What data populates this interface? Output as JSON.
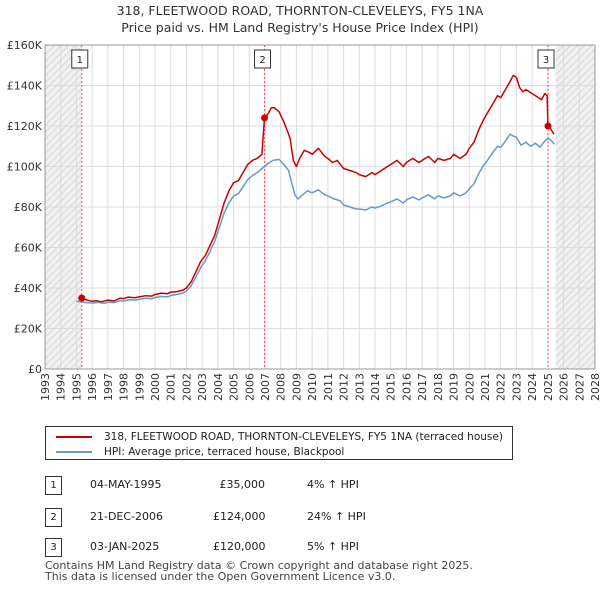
{
  "chart_data": {
    "type": "line",
    "title": "318, FLEETWOOD ROAD, THORNTON-CLEVELEYS, FY5 1NA",
    "subtitle": "Price paid vs. HM Land Registry's House Price Index (HPI)",
    "xlabel": "",
    "ylabel": "",
    "xlim": [
      1993,
      2028
    ],
    "ylim": [
      0,
      160000
    ],
    "x_ticks": [
      1993,
      1994,
      1995,
      1996,
      1997,
      1998,
      1999,
      2000,
      2001,
      2002,
      2003,
      2004,
      2005,
      2006,
      2007,
      2008,
      2009,
      2010,
      2011,
      2012,
      2013,
      2014,
      2015,
      2016,
      2017,
      2018,
      2019,
      2020,
      2021,
      2022,
      2023,
      2024,
      2025,
      2026,
      2027,
      2028
    ],
    "y_ticks": [
      {
        "value": 0,
        "label": "£0"
      },
      {
        "value": 20000,
        "label": "£20K"
      },
      {
        "value": 40000,
        "label": "£40K"
      },
      {
        "value": 60000,
        "label": "£60K"
      },
      {
        "value": 80000,
        "label": "£80K"
      },
      {
        "value": 100000,
        "label": "£100K"
      },
      {
        "value": 120000,
        "label": "£120K"
      },
      {
        "value": 140000,
        "label": "£140K"
      },
      {
        "value": 160000,
        "label": "£160K"
      }
    ],
    "grid": true,
    "shaded_regions": [
      {
        "name": "before-data",
        "x": [
          1993,
          1995.34
        ]
      },
      {
        "name": "after-data",
        "x": [
          2025.5,
          2028
        ]
      }
    ],
    "series": [
      {
        "name": "318, FLEETWOOD ROAD, THORNTON-CLEVELEYS, FY5 1NA (terraced house)",
        "color": "#cc0000",
        "points": [
          [
            1995.34,
            35000
          ],
          [
            1995.5,
            34500
          ],
          [
            1995.8,
            33800
          ],
          [
            1996.0,
            33500
          ],
          [
            1996.3,
            33700
          ],
          [
            1996.6,
            33200
          ],
          [
            1997.0,
            34000
          ],
          [
            1997.4,
            33600
          ],
          [
            1997.8,
            35000
          ],
          [
            1998.0,
            34700
          ],
          [
            1998.3,
            35500
          ],
          [
            1998.7,
            35200
          ],
          [
            1999.0,
            35600
          ],
          [
            1999.4,
            36200
          ],
          [
            1999.8,
            36000
          ],
          [
            2000.0,
            36800
          ],
          [
            2000.4,
            37500
          ],
          [
            2000.8,
            37200
          ],
          [
            2001.0,
            38000
          ],
          [
            2001.4,
            38200
          ],
          [
            2001.8,
            39000
          ],
          [
            2002.0,
            40000
          ],
          [
            2002.3,
            43000
          ],
          [
            2002.6,
            48000
          ],
          [
            2002.9,
            53000
          ],
          [
            2003.2,
            56000
          ],
          [
            2003.5,
            61000
          ],
          [
            2003.8,
            66000
          ],
          [
            2004.1,
            74000
          ],
          [
            2004.4,
            82000
          ],
          [
            2004.7,
            88000
          ],
          [
            2005.0,
            92000
          ],
          [
            2005.3,
            93000
          ],
          [
            2005.6,
            97000
          ],
          [
            2005.9,
            101000
          ],
          [
            2006.2,
            103000
          ],
          [
            2006.5,
            104000
          ],
          [
            2006.8,
            106000
          ],
          [
            2006.97,
            124000
          ],
          [
            2007.2,
            126000
          ],
          [
            2007.4,
            129000
          ],
          [
            2007.6,
            129000
          ],
          [
            2007.9,
            127000
          ],
          [
            2008.2,
            122000
          ],
          [
            2008.4,
            118000
          ],
          [
            2008.6,
            114000
          ],
          [
            2008.8,
            103000
          ],
          [
            2009.0,
            100000
          ],
          [
            2009.2,
            104000
          ],
          [
            2009.5,
            108000
          ],
          [
            2009.8,
            107000
          ],
          [
            2010.0,
            106000
          ],
          [
            2010.4,
            109000
          ],
          [
            2010.8,
            105000
          ],
          [
            2011.0,
            104000
          ],
          [
            2011.3,
            102000
          ],
          [
            2011.6,
            103000
          ],
          [
            2012.0,
            99000
          ],
          [
            2012.4,
            98000
          ],
          [
            2012.8,
            97000
          ],
          [
            2013.0,
            96000
          ],
          [
            2013.4,
            95000
          ],
          [
            2013.8,
            97000
          ],
          [
            2014.0,
            96000
          ],
          [
            2014.4,
            98000
          ],
          [
            2014.8,
            100000
          ],
          [
            2015.0,
            101000
          ],
          [
            2015.4,
            103000
          ],
          [
            2015.8,
            100000
          ],
          [
            2016.0,
            102000
          ],
          [
            2016.4,
            104000
          ],
          [
            2016.8,
            102000
          ],
          [
            2017.0,
            103000
          ],
          [
            2017.4,
            105000
          ],
          [
            2017.8,
            102000
          ],
          [
            2018.0,
            104000
          ],
          [
            2018.4,
            103000
          ],
          [
            2018.8,
            104000
          ],
          [
            2019.0,
            106000
          ],
          [
            2019.4,
            104000
          ],
          [
            2019.8,
            106000
          ],
          [
            2020.0,
            109000
          ],
          [
            2020.3,
            112000
          ],
          [
            2020.6,
            118000
          ],
          [
            2020.9,
            123000
          ],
          [
            2021.2,
            127000
          ],
          [
            2021.5,
            131000
          ],
          [
            2021.8,
            135000
          ],
          [
            2022.0,
            134000
          ],
          [
            2022.3,
            138000
          ],
          [
            2022.6,
            142000
          ],
          [
            2022.8,
            145000
          ],
          [
            2023.0,
            144000
          ],
          [
            2023.2,
            139000
          ],
          [
            2023.4,
            137000
          ],
          [
            2023.6,
            138000
          ],
          [
            2023.8,
            137000
          ],
          [
            2024.0,
            136000
          ],
          [
            2024.2,
            135000
          ],
          [
            2024.4,
            134000
          ],
          [
            2024.6,
            133000
          ],
          [
            2024.8,
            136000
          ],
          [
            2024.95,
            135000
          ],
          [
            2025.01,
            120000
          ],
          [
            2025.15,
            119000
          ],
          [
            2025.3,
            117000
          ],
          [
            2025.4,
            116000
          ]
        ]
      },
      {
        "name": "HPI: Average price, terraced house, Blackpool",
        "color": "#6699cc",
        "points": [
          [
            1995.0,
            33500
          ],
          [
            1995.3,
            33200
          ],
          [
            1995.6,
            32800
          ],
          [
            1996.0,
            32600
          ],
          [
            1996.4,
            32900
          ],
          [
            1996.8,
            32400
          ],
          [
            1997.0,
            33100
          ],
          [
            1997.4,
            32800
          ],
          [
            1997.8,
            33800
          ],
          [
            1998.0,
            33600
          ],
          [
            1998.4,
            34200
          ],
          [
            1998.8,
            34000
          ],
          [
            1999.0,
            34400
          ],
          [
            1999.4,
            34900
          ],
          [
            1999.8,
            34700
          ],
          [
            2000.0,
            35300
          ],
          [
            2000.4,
            35800
          ],
          [
            2000.8,
            35600
          ],
          [
            2001.0,
            36300
          ],
          [
            2001.4,
            36800
          ],
          [
            2001.8,
            37600
          ],
          [
            2002.0,
            38500
          ],
          [
            2002.3,
            41000
          ],
          [
            2002.6,
            45500
          ],
          [
            2002.9,
            50000
          ],
          [
            2003.2,
            53500
          ],
          [
            2003.5,
            58000
          ],
          [
            2003.8,
            63000
          ],
          [
            2004.1,
            70000
          ],
          [
            2004.4,
            77000
          ],
          [
            2004.7,
            82000
          ],
          [
            2005.0,
            85500
          ],
          [
            2005.3,
            86500
          ],
          [
            2005.6,
            90000
          ],
          [
            2005.9,
            93500
          ],
          [
            2006.2,
            95500
          ],
          [
            2006.5,
            97000
          ],
          [
            2006.97,
            100000
          ],
          [
            2007.2,
            101500
          ],
          [
            2007.5,
            103000
          ],
          [
            2007.9,
            103500
          ],
          [
            2008.2,
            101000
          ],
          [
            2008.5,
            98000
          ],
          [
            2008.7,
            92000
          ],
          [
            2008.9,
            86000
          ],
          [
            2009.1,
            84000
          ],
          [
            2009.4,
            86000
          ],
          [
            2009.7,
            88000
          ],
          [
            2010.0,
            87000
          ],
          [
            2010.4,
            88500
          ],
          [
            2010.8,
            86000
          ],
          [
            2011.0,
            85500
          ],
          [
            2011.4,
            84000
          ],
          [
            2011.8,
            83000
          ],
          [
            2012.0,
            81000
          ],
          [
            2012.4,
            80000
          ],
          [
            2012.8,
            79000
          ],
          [
            2013.0,
            79000
          ],
          [
            2013.4,
            78500
          ],
          [
            2013.8,
            80000
          ],
          [
            2014.0,
            79500
          ],
          [
            2014.4,
            80500
          ],
          [
            2014.8,
            82000
          ],
          [
            2015.0,
            82500
          ],
          [
            2015.4,
            84000
          ],
          [
            2015.8,
            82000
          ],
          [
            2016.0,
            83500
          ],
          [
            2016.4,
            85000
          ],
          [
            2016.8,
            83500
          ],
          [
            2017.0,
            84500
          ],
          [
            2017.4,
            86000
          ],
          [
            2017.8,
            84000
          ],
          [
            2018.0,
            85500
          ],
          [
            2018.4,
            84500
          ],
          [
            2018.8,
            85500
          ],
          [
            2019.0,
            87000
          ],
          [
            2019.4,
            85500
          ],
          [
            2019.8,
            87000
          ],
          [
            2020.0,
            89000
          ],
          [
            2020.3,
            91500
          ],
          [
            2020.6,
            96500
          ],
          [
            2020.9,
            100500
          ],
          [
            2021.2,
            103500
          ],
          [
            2021.5,
            107000
          ],
          [
            2021.8,
            110000
          ],
          [
            2022.0,
            109500
          ],
          [
            2022.3,
            112500
          ],
          [
            2022.6,
            116000
          ],
          [
            2022.8,
            115000
          ],
          [
            2023.0,
            114500
          ],
          [
            2023.3,
            110500
          ],
          [
            2023.6,
            112000
          ],
          [
            2023.9,
            110000
          ],
          [
            2024.2,
            111500
          ],
          [
            2024.5,
            109500
          ],
          [
            2024.8,
            112500
          ],
          [
            2025.0,
            114000
          ],
          [
            2025.2,
            113000
          ],
          [
            2025.4,
            111000
          ]
        ]
      }
    ],
    "sale_markers": [
      {
        "label": "1",
        "x": 1995.34,
        "price": 35000
      },
      {
        "label": "2",
        "x": 2006.97,
        "price": 124000
      },
      {
        "label": "3",
        "x": 2025.01,
        "price": 120000
      }
    ]
  },
  "legend": {
    "items": [
      {
        "label": "318, FLEETWOOD ROAD, THORNTON-CLEVELEYS, FY5 1NA (terraced house)",
        "color": "#cc0000"
      },
      {
        "label": "HPI: Average price, terraced house, Blackpool",
        "color": "#6699cc"
      }
    ]
  },
  "sales": [
    {
      "num": "1",
      "date": "04-MAY-1995",
      "price": "£35,000",
      "hpi": "4% ↑ HPI"
    },
    {
      "num": "2",
      "date": "21-DEC-2006",
      "price": "£124,000",
      "hpi": "24% ↑ HPI"
    },
    {
      "num": "3",
      "date": "03-JAN-2025",
      "price": "£120,000",
      "hpi": "5% ↑ HPI"
    }
  ],
  "footer": {
    "line1": "Contains HM Land Registry data © Crown copyright and database right 2025.",
    "line2": "This data is licensed under the Open Government Licence v3.0."
  }
}
